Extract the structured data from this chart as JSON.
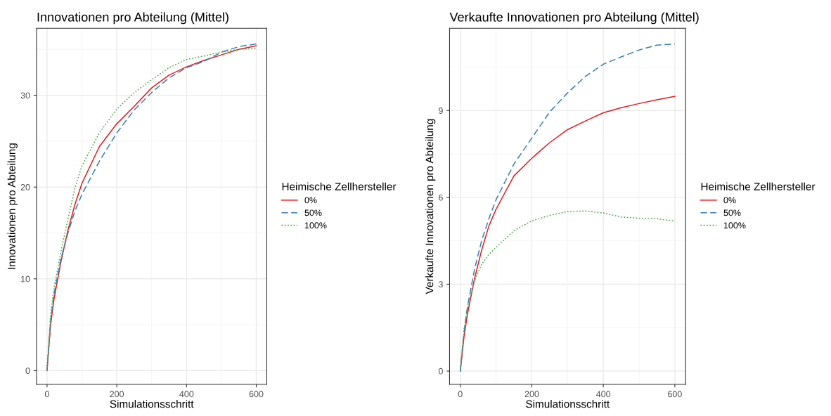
{
  "chart_data": [
    {
      "type": "line",
      "title": "Innovationen pro Abteilung (Mittel)",
      "xlabel": "Simulationsschritt",
      "ylabel": "Innovationen pro Abteilung",
      "legend_title": "Heimische Zellhersteller",
      "legend": "right",
      "x": [
        0,
        10,
        20,
        40,
        60,
        80,
        100,
        150,
        200,
        250,
        300,
        350,
        400,
        450,
        500,
        550,
        600
      ],
      "xlim": [
        -30,
        630
      ],
      "xticks": [
        0,
        200,
        400,
        600
      ],
      "ylim": [
        -1.5,
        37.3
      ],
      "yticks": [
        0,
        10,
        20,
        30
      ],
      "grid": true,
      "series": [
        {
          "name": "0%",
          "color": "#e41a1c",
          "line_style": "solid",
          "values": [
            0,
            4.9,
            7.8,
            11.9,
            15.3,
            18.1,
            20.4,
            24.4,
            26.9,
            28.8,
            30.8,
            32.2,
            33.1,
            33.8,
            34.4,
            35.0,
            35.4
          ]
        },
        {
          "name": "50%",
          "color": "#377eb8",
          "line_style": "dashed",
          "values": [
            0,
            5.3,
            8.3,
            12.2,
            15.0,
            17.4,
            19.2,
            22.8,
            25.9,
            28.4,
            30.3,
            31.9,
            33.0,
            33.7,
            34.7,
            35.3,
            35.6
          ]
        },
        {
          "name": "100%",
          "color": "#4daf4a",
          "line_style": "dotted",
          "values": [
            0,
            6.0,
            9.0,
            13.0,
            16.5,
            19.9,
            22.3,
            25.9,
            28.5,
            30.3,
            31.7,
            33.0,
            33.9,
            34.3,
            34.7,
            35.0,
            35.1
          ]
        }
      ]
    },
    {
      "type": "line",
      "title": "Verkaufte Innovationen pro Abteilung (Mittel)",
      "xlabel": "Simulationsschritt",
      "ylabel": "Verkaufte Innovationen pro Abteilung",
      "legend_title": "Heimische Zellhersteller",
      "legend": "right",
      "x": [
        0,
        10,
        20,
        40,
        60,
        80,
        100,
        150,
        200,
        250,
        300,
        350,
        400,
        450,
        500,
        550,
        600
      ],
      "xlim": [
        -30,
        630
      ],
      "xticks": [
        0,
        200,
        400,
        600
      ],
      "ylim": [
        -0.46,
        11.84
      ],
      "yticks": [
        0,
        3,
        6,
        9
      ],
      "grid": true,
      "series": [
        {
          "name": "0%",
          "color": "#e41a1c",
          "line_style": "solid",
          "values": [
            0,
            1.15,
            1.97,
            3.2,
            4.19,
            5.01,
            5.59,
            6.74,
            7.35,
            7.89,
            8.34,
            8.64,
            8.92,
            9.1,
            9.24,
            9.37,
            9.49
          ]
        },
        {
          "name": "50%",
          "color": "#377eb8",
          "line_style": "dashed",
          "values": [
            0,
            1.3,
            2.22,
            3.53,
            4.52,
            5.26,
            5.92,
            7.15,
            8.05,
            8.95,
            9.61,
            10.18,
            10.6,
            10.85,
            11.09,
            11.26,
            11.3
          ]
        },
        {
          "name": "100%",
          "color": "#4daf4a",
          "line_style": "dotted",
          "values": [
            0,
            1.4,
            2.2,
            3.12,
            3.7,
            4.03,
            4.27,
            4.85,
            5.19,
            5.38,
            5.51,
            5.53,
            5.46,
            5.32,
            5.28,
            5.26,
            5.18
          ]
        }
      ]
    }
  ]
}
